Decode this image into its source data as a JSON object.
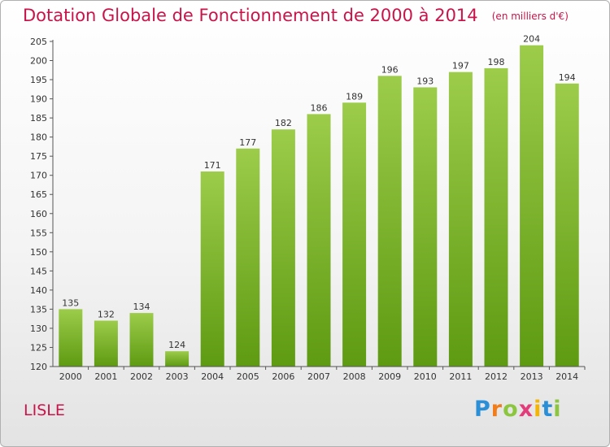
{
  "header": {
    "title": "Dotation Globale de Fonctionnement de 2000 à 2014",
    "unit": "(en milliers d'€)"
  },
  "footer": {
    "commune": "LISLE",
    "brand": "Proxiti"
  },
  "colors": {
    "title": "#c8144a",
    "bar_top": "#9ccc4a",
    "bar_bottom": "#5e9a12",
    "axis": "#555555"
  },
  "chart_data": {
    "type": "bar",
    "categories": [
      "2000",
      "2001",
      "2002",
      "2003",
      "2004",
      "2005",
      "2006",
      "2007",
      "2008",
      "2009",
      "2010",
      "2011",
      "2012",
      "2013",
      "2014"
    ],
    "values": [
      135,
      132,
      134,
      124,
      171,
      177,
      182,
      186,
      189,
      196,
      193,
      197,
      198,
      204,
      194
    ],
    "title": "Dotation Globale de Fonctionnement de 2000 à 2014",
    "subtitle": "(en milliers d'€)",
    "xlabel": "",
    "ylabel": "",
    "ylim": [
      120,
      205
    ],
    "ytick_step": 5,
    "grid": false,
    "legend": "none"
  }
}
